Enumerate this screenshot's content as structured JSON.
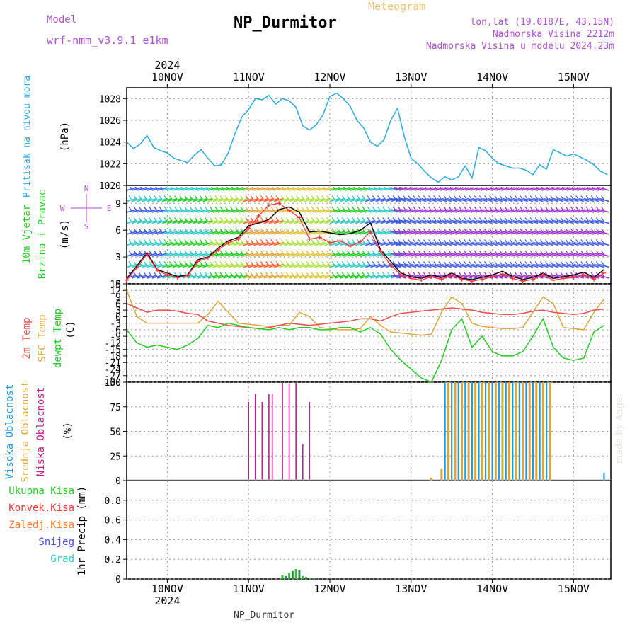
{
  "header": {
    "title": "NP_Durmitor",
    "model_label": "Model",
    "model_name": "wrf-nmm_v3.9.1 e1km",
    "meteogram_label": "Meteogram",
    "location_coords": "lon,lat (19.0187E, 43.15N)",
    "station_altitude": "Nadmorska Visina 2212m",
    "model_altitude": "Nadmorska Visina u modelu 2024.23m",
    "footer_station": "NP_Durmitor",
    "credit": "made by Angel"
  },
  "colors": {
    "pressure": "#2aa9e6",
    "wind_black": "#000000",
    "wind_red": "#ff3030",
    "temp_2m": "#ef4b4b",
    "temp_sfc": "#e0a53a",
    "dewpoint": "#22cc22",
    "cloud_high": "#1e9be6",
    "cloud_mid": "#e0a53a",
    "cloud_low": "#c21b8c",
    "precip_total": "#22cc22",
    "precip_conv": "#ff3030",
    "precip_frozen": "#ff7a2a",
    "precip_snow": "#4848e0",
    "precip_grad": "#2ec7c7",
    "grid": "#9a9a9a"
  },
  "chart_data": [
    {
      "type": "line",
      "panel": "pressure",
      "ylabel_colored": "Pritisak na nivou mora",
      "ylabel_unit": "(hPa)",
      "year_label": "2024",
      "categories": [
        "10NOV",
        "11NOV",
        "12NOV",
        "13NOV",
        "14NOV",
        "15NOV"
      ],
      "ylim": [
        1020,
        1029
      ],
      "yticks": [
        "1020",
        "1022",
        "1024",
        "1026",
        "1028"
      ],
      "grid": true,
      "series": [
        {
          "x": [
            0,
            2,
            4,
            6,
            8,
            10,
            12,
            14,
            16,
            18,
            20,
            22,
            24,
            26,
            28,
            30,
            32,
            34,
            36,
            38,
            40,
            42,
            44,
            46,
            48,
            50,
            52,
            54,
            56,
            58,
            60,
            62,
            64,
            66,
            68,
            70,
            72,
            74,
            76,
            78,
            80,
            82,
            84,
            86,
            88,
            90,
            92,
            94,
            96,
            98,
            100,
            102,
            104,
            106,
            108,
            110,
            112,
            114,
            116,
            118,
            120,
            122,
            124,
            126,
            128,
            130,
            132,
            134,
            136,
            138,
            140,
            142
          ],
          "values": [
            1024.0,
            1023.4,
            1023.8,
            1024.6,
            1023.5,
            1023.2,
            1023.0,
            1022.5,
            1022.3,
            1022.1,
            1022.8,
            1023.3,
            1022.5,
            1021.8,
            1021.9,
            1023.0,
            1024.8,
            1026.3,
            1027.0,
            1028.0,
            1027.9,
            1028.3,
            1027.5,
            1028.0,
            1027.8,
            1027.2,
            1025.5,
            1025.1,
            1025.6,
            1026.5,
            1028.2,
            1028.5,
            1028.0,
            1027.3,
            1026.0,
            1025.3,
            1024.0,
            1023.6,
            1024.2,
            1026.0,
            1027.1,
            1024.5,
            1022.5,
            1022.0,
            1021.3,
            1020.7,
            1020.3,
            1020.8,
            1020.5,
            1020.8,
            1021.8,
            1020.7,
            1023.5,
            1023.2,
            1022.5,
            1022.0,
            1021.8,
            1021.6,
            1021.6,
            1021.4,
            1021.0,
            1021.9,
            1021.5,
            1023.3,
            1023.0,
            1022.7,
            1022.9,
            1022.6,
            1022.3,
            1021.9,
            1021.3,
            1021.0
          ]
        }
      ]
    },
    {
      "type": "line",
      "panel": "wind",
      "ylabel_colored_1": "10m Vjetar",
      "ylabel_colored_2": "Brzina i Pravac",
      "ylabel_unit": "(m/s)",
      "compass": {
        "north": "N",
        "west": "W",
        "east": "E",
        "south": "S"
      },
      "ylim": [
        0,
        11
      ],
      "yticks": [
        "0",
        "3",
        "6",
        "9"
      ],
      "grid": true,
      "series": [
        {
          "name": "wind speed",
          "x": [
            0,
            3,
            6,
            9,
            12,
            15,
            18,
            21,
            24,
            27,
            30,
            33,
            36,
            39,
            42,
            45,
            48,
            51,
            54,
            57,
            60,
            63,
            66,
            69,
            72,
            75,
            78,
            81,
            84,
            87,
            90,
            93,
            96,
            99,
            102,
            105,
            108,
            111,
            114,
            117,
            120,
            123,
            126,
            129,
            132,
            135,
            138,
            141
          ],
          "values": [
            0.6,
            2.0,
            3.5,
            1.6,
            1.2,
            0.8,
            1.0,
            2.7,
            3.0,
            4.0,
            4.8,
            5.2,
            6.5,
            6.8,
            7.2,
            8.3,
            8.6,
            8.0,
            5.8,
            5.9,
            5.7,
            5.5,
            5.6,
            6.0,
            6.8,
            3.8,
            2.5,
            1.2,
            0.8,
            0.6,
            1.0,
            0.7,
            1.2,
            0.6,
            0.5,
            0.7,
            1.0,
            1.4,
            0.8,
            0.5,
            0.7,
            1.2,
            0.6,
            0.8,
            1.0,
            1.3,
            0.7,
            1.6
          ]
        },
        {
          "name": "wind gust",
          "x": [
            0,
            3,
            6,
            9,
            12,
            15,
            18,
            21,
            24,
            27,
            30,
            33,
            36,
            39,
            42,
            45,
            48,
            51,
            54,
            57,
            60,
            63,
            66,
            69,
            72,
            75,
            78,
            81,
            84,
            87,
            90,
            93,
            96,
            99,
            102,
            105,
            108,
            111,
            114,
            117,
            120,
            123,
            126,
            129,
            132,
            135,
            138,
            141
          ],
          "values": [
            0.4,
            1.8,
            3.3,
            1.5,
            1.0,
            0.7,
            0.9,
            2.5,
            2.9,
            3.8,
            4.6,
            5.0,
            6.2,
            7.6,
            8.8,
            9.0,
            8.2,
            7.4,
            5.0,
            5.2,
            4.6,
            4.8,
            4.2,
            4.7,
            5.8,
            3.6,
            2.1,
            1.0,
            0.6,
            0.4,
            0.8,
            0.5,
            1.0,
            0.5,
            0.3,
            0.5,
            0.8,
            1.1,
            0.6,
            0.3,
            0.5,
            1.0,
            0.4,
            0.6,
            0.7,
            1.0,
            0.5,
            1.2
          ]
        }
      ]
    },
    {
      "type": "line",
      "panel": "temperature",
      "ylabel_colored_1": "2m Temp",
      "ylabel_colored_2": "SFC Temp",
      "ylabel_colored_3": "dewpt Temp",
      "ylabel_unit": "(C)",
      "ylim": [
        -30,
        15
      ],
      "yticks": [
        "-30",
        "-27",
        "-24",
        "-21",
        "-18",
        "-15",
        "-12",
        "-9",
        "-6",
        "-3",
        "0",
        "3",
        "6",
        "9",
        "12",
        "15"
      ],
      "grid": true,
      "series": [
        {
          "name": "2m Temp",
          "x": [
            0,
            3,
            6,
            9,
            12,
            15,
            18,
            21,
            24,
            27,
            30,
            33,
            36,
            39,
            42,
            45,
            48,
            51,
            54,
            57,
            60,
            63,
            66,
            69,
            72,
            75,
            78,
            81,
            84,
            87,
            90,
            93,
            96,
            99,
            102,
            105,
            108,
            111,
            114,
            117,
            120,
            123,
            126,
            129,
            132,
            135,
            138,
            141
          ],
          "values": [
            6,
            4,
            2,
            3,
            3,
            2.5,
            1.5,
            1,
            -2,
            -3,
            -4,
            -4.5,
            -5,
            -5.5,
            -5,
            -4,
            -3,
            -3.5,
            -4,
            -3.5,
            -3,
            -2.5,
            -2,
            -1,
            -1,
            -2,
            0,
            1.5,
            2,
            2.5,
            3,
            3.5,
            4,
            3.5,
            3,
            2,
            1.5,
            1,
            1,
            1.5,
            2.5,
            3,
            2,
            1.5,
            1,
            1.5,
            3,
            3.5
          ]
        },
        {
          "name": "SFC Temp",
          "x": [
            0,
            3,
            6,
            9,
            12,
            15,
            18,
            21,
            24,
            27,
            30,
            33,
            36,
            39,
            42,
            45,
            48,
            51,
            54,
            57,
            60,
            63,
            66,
            69,
            72,
            75,
            78,
            81,
            84,
            87,
            90,
            93,
            96,
            99,
            102,
            105,
            108,
            111,
            114,
            117,
            120,
            123,
            126,
            129,
            132,
            135,
            138,
            141
          ],
          "values": [
            12,
            0,
            -3,
            -3,
            -3,
            -3,
            -3,
            -3,
            1,
            7,
            2,
            -3,
            -3.5,
            -4,
            -4.5,
            -4,
            -4,
            2,
            0,
            -5,
            -5.5,
            -6,
            -6,
            -5.5,
            0,
            -4,
            -7,
            -7.5,
            -8,
            -8.5,
            -8,
            2,
            9,
            6,
            -3,
            -4.5,
            -5,
            -5.5,
            -5.5,
            -5,
            2,
            9,
            6,
            -5,
            -5.5,
            -6,
            2,
            8
          ]
        },
        {
          "name": "dewpt Temp",
          "x": [
            0,
            3,
            6,
            9,
            12,
            15,
            18,
            21,
            24,
            27,
            30,
            33,
            36,
            39,
            42,
            45,
            48,
            51,
            54,
            57,
            60,
            63,
            66,
            69,
            72,
            75,
            78,
            81,
            84,
            87,
            90,
            93,
            96,
            99,
            102,
            105,
            108,
            111,
            114,
            117,
            120,
            123,
            126,
            129,
            132,
            135,
            138,
            141
          ],
          "values": [
            -6,
            -12,
            -14,
            -13,
            -14,
            -15,
            -13,
            -10,
            -4,
            -5,
            -3,
            -4,
            -5,
            -5.5,
            -6,
            -5,
            -6,
            -5,
            -5,
            -6,
            -6,
            -5,
            -5,
            -7,
            -5,
            -8,
            -15,
            -20,
            -24,
            -28,
            -30,
            -20,
            -6,
            -1,
            -14,
            -9,
            -16,
            -18,
            -18,
            -16,
            -9,
            -1,
            -14,
            -19,
            -20,
            -19,
            -7,
            -4
          ]
        }
      ]
    },
    {
      "type": "bar",
      "panel": "cloud",
      "ylabel_colored_1": "Visoka Oblacnost",
      "ylabel_colored_2": "Srednja Oblacnost",
      "ylabel_colored_3": "Niska Oblacnost",
      "ylabel_unit": "(%)",
      "ylim": [
        0,
        100
      ],
      "yticks": [
        "0",
        "25",
        "50",
        "75",
        "100"
      ],
      "grid": true,
      "series": [
        {
          "name": "Niska Oblacnost",
          "x": [
            36,
            38,
            40,
            42,
            43,
            46,
            48,
            50,
            52,
            54,
            56
          ],
          "values": [
            80,
            88,
            80,
            88,
            88,
            100,
            99,
            100,
            37,
            80,
            0
          ]
        },
        {
          "name": "Srednja Oblacnost",
          "x": [
            90,
            93,
            95,
            97,
            99,
            101,
            103,
            105,
            107,
            109,
            111,
            113,
            115,
            117,
            119,
            121,
            123,
            125
          ],
          "values": [
            3,
            12,
            100,
            100,
            100,
            100,
            100,
            100,
            100,
            100,
            100,
            100,
            100,
            100,
            100,
            100,
            100,
            100
          ]
        },
        {
          "name": "Visoka Oblacnost",
          "x": [
            94,
            96,
            98,
            100,
            102,
            104,
            106,
            108,
            110,
            112,
            114,
            116,
            118,
            120,
            122,
            124,
            141
          ],
          "values": [
            100,
            100,
            100,
            100,
            100,
            100,
            100,
            100,
            100,
            100,
            100,
            100,
            100,
            100,
            100,
            100,
            8
          ]
        }
      ]
    },
    {
      "type": "bar",
      "panel": "precip",
      "ylabel_unit": "1hr Precip (mm)",
      "legend": [
        "Ukupna Kisa",
        "Konvek.Kisa",
        "Zaledj.Kisa",
        "Snijeg",
        "Grad"
      ],
      "ylim": [
        0,
        1
      ],
      "yticks": [
        "0",
        "0.2",
        "0.4",
        "0.6",
        "0.8"
      ],
      "grid": true,
      "series": [
        {
          "name": "Ukupna Kisa",
          "x": [
            46,
            47,
            48,
            49,
            50,
            51,
            52,
            53,
            55,
            56
          ],
          "values": [
            0.04,
            0.03,
            0.06,
            0.08,
            0.1,
            0.09,
            0.03,
            0.02,
            0.01,
            0.01
          ]
        }
      ]
    }
  ],
  "time_axis": {
    "labels": [
      "10NOV",
      "11NOV",
      "12NOV",
      "13NOV",
      "14NOV",
      "15NOV"
    ],
    "year": "2024",
    "hours_per_day": 24,
    "first_day_hour": 12,
    "total_hours": 143
  }
}
